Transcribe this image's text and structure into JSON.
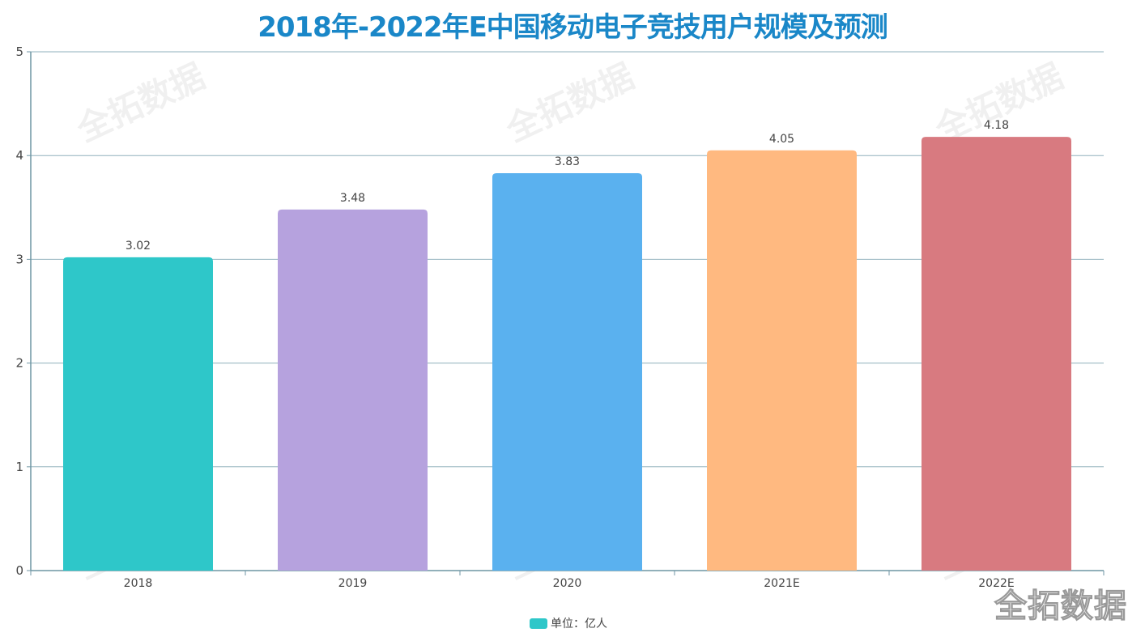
{
  "chart_data": {
    "type": "bar",
    "title": "2018年-2022年E中国移动电子竞技用户规模及预测",
    "categories": [
      "2018",
      "2019",
      "2020",
      "2021E",
      "2022E"
    ],
    "values": [
      3.02,
      3.48,
      3.83,
      4.05,
      4.18
    ],
    "colors": [
      "#2ec7c9",
      "#b6a2de",
      "#5ab1ef",
      "#ffb980",
      "#d87a80"
    ],
    "xlabel": "",
    "ylabel": "",
    "ylim": [
      0,
      5
    ],
    "yticks": [
      0,
      1,
      2,
      3,
      4,
      5
    ],
    "grid": true,
    "legend": {
      "label": "单位：亿人",
      "color": "#2ec7c9",
      "placement": "bottom-center"
    },
    "watermark": "全拓数据"
  }
}
